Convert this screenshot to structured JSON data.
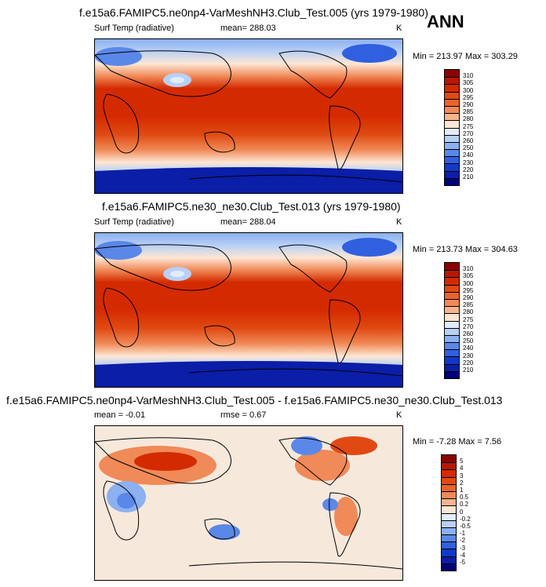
{
  "panel1": {
    "title": "f.e15a6.FAMIPC5.ne0np4-VarMeshNH3.Club_Test.005 (yrs 1979-1980)",
    "left": "Surf Temp (radiative)",
    "center": "mean= 288.03",
    "right": "K",
    "minmax": "Min = 213.97 Max = 303.29"
  },
  "panel2": {
    "title": "f.e15a6.FAMIPC5.ne30_ne30.Club_Test.013 (yrs 1979-1980)",
    "left": "Surf Temp (radiative)",
    "center": "mean= 288.04",
    "right": "K",
    "minmax": "Min = 213.73 Max = 304.63"
  },
  "panel3": {
    "title": "f.e15a6.FAMIPC5.ne0np4-VarMeshNH3.Club_Test.005 - f.e15a6.FAMIPC5.ne30_ne30.Club_Test.013",
    "left": "mean =  -0.01",
    "center": "rmse =   0.67",
    "right": "K",
    "minmax": "Min =  -7.28 Max =   7.56"
  },
  "season": "ANN",
  "colorbar_temp": {
    "labels": [
      "310",
      "305",
      "300",
      "295",
      "290",
      "285",
      "280",
      "275",
      "270",
      "260",
      "250",
      "240",
      "230",
      "220",
      "210"
    ],
    "colors": [
      "#8b0000",
      "#b81800",
      "#d42a00",
      "#e04a12",
      "#e8642c",
      "#f08a58",
      "#f7b48c",
      "#fde6d4",
      "#e2ecfb",
      "#b8d0f5",
      "#8cb0f0",
      "#5a88e8",
      "#3060e0",
      "#1238c8",
      "#0a1ea8",
      "#00007a"
    ]
  },
  "colorbar_diff": {
    "labels": [
      "5",
      "4",
      "3",
      "2",
      "1",
      "0.5",
      "0.2",
      "0",
      "-0.2",
      "-0.5",
      "-1",
      "-2",
      "-3",
      "-4",
      "-5"
    ],
    "colors": [
      "#8b0000",
      "#b81800",
      "#d42a00",
      "#e04a12",
      "#e8642c",
      "#f08a58",
      "#f7b48c",
      "#fde6d4",
      "#e2ecfb",
      "#b8d0f5",
      "#8cb0f0",
      "#5a88e8",
      "#3060e0",
      "#1238c8",
      "#0a1ea8",
      "#00007a"
    ]
  }
}
